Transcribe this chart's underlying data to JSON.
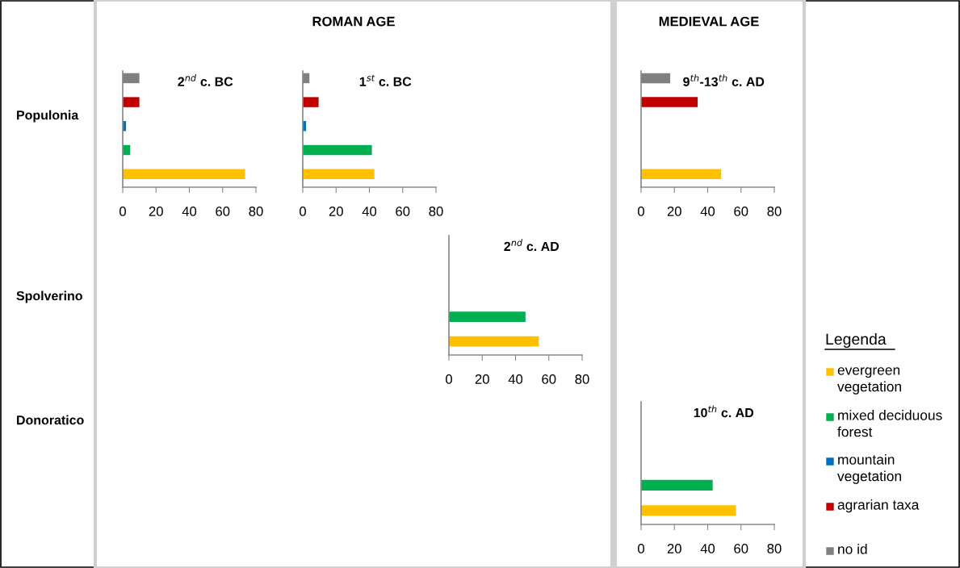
{
  "chart_data": [
    {
      "type": "other",
      "annotations": [
        "ROMAN AGE",
        "MEDIEVAL AGE",
        "Populonia",
        "Spolverino",
        "Donoratico"
      ]
    },
    {
      "type": "bar",
      "orientation": "horizontal",
      "title": "2$^{nd}$ c. BC",
      "categories": [
        null,
        null,
        null,
        null,
        null
      ],
      "xlim": [
        0,
        80
      ],
      "xticks": [
        0,
        20,
        40,
        60,
        80
      ],
      "tick_labels": "x",
      "series": [
        {
          "color": "#ffc000",
          "values": [
            null,
            null,
            null,
            null,
            73.5
          ]
        },
        {
          "color": "#00b050",
          "values": [
            null,
            null,
            null,
            4.5,
            null
          ]
        },
        {
          "color": "#0070c0",
          "values": [
            null,
            null,
            2,
            null,
            null
          ]
        },
        {
          "color": "#c00000",
          "values": [
            null,
            10,
            null,
            null,
            null
          ]
        },
        {
          "color": "#808080",
          "values": [
            10,
            null,
            null,
            null,
            null
          ]
        }
      ]
    },
    {
      "type": "bar",
      "orientation": "horizontal",
      "title": "1$^{st}$ c. BC",
      "categories": [
        null,
        null,
        null,
        null,
        null
      ],
      "xlim": [
        0,
        80
      ],
      "xticks": [
        0,
        20,
        40,
        60,
        80
      ],
      "tick_labels": "x",
      "series": [
        {
          "color": "#ffc000",
          "values": [
            null,
            null,
            null,
            null,
            43
          ]
        },
        {
          "color": "#00b050",
          "values": [
            null,
            null,
            null,
            41.5,
            null
          ]
        },
        {
          "color": "#0070c0",
          "values": [
            null,
            null,
            2,
            null,
            null
          ]
        },
        {
          "color": "#c00000",
          "values": [
            null,
            9.5,
            null,
            null,
            null
          ]
        },
        {
          "color": "#808080",
          "values": [
            4,
            null,
            null,
            null,
            null
          ]
        }
      ]
    },
    {
      "type": "bar",
      "orientation": "horizontal",
      "title": "2$^{nd}$ c. AD",
      "categories": [
        null,
        null,
        null,
        null,
        null
      ],
      "xlim": [
        0,
        80
      ],
      "xticks": [
        0,
        20,
        40,
        60,
        80
      ],
      "tick_labels": "x",
      "series": [
        {
          "color": "#ffc000",
          "values": [
            null,
            null,
            null,
            null,
            54
          ]
        },
        {
          "color": "#00b050",
          "values": [
            null,
            null,
            null,
            46,
            null
          ]
        }
      ]
    },
    {
      "type": "bar",
      "orientation": "horizontal",
      "title": "9$^{th}$-13$^{th}$ c. AD",
      "categories": [
        null,
        null,
        null,
        null,
        null
      ],
      "xlim": [
        0,
        80
      ],
      "xticks": [
        0,
        20,
        40,
        60,
        80
      ],
      "tick_labels": "x",
      "series": [
        {
          "color": "#ffc000",
          "values": [
            null,
            null,
            null,
            null,
            48
          ]
        },
        {
          "color": "#c00000",
          "values": [
            null,
            34,
            null,
            null,
            null
          ]
        },
        {
          "color": "#808080",
          "values": [
            17.5,
            null,
            null,
            null,
            null
          ]
        }
      ]
    },
    {
      "type": "bar",
      "orientation": "horizontal",
      "title": "10$^{th}$ c. AD",
      "categories": [
        null,
        null,
        null,
        null,
        null
      ],
      "xlim": [
        0,
        80
      ],
      "xticks": [
        0,
        20,
        40,
        60,
        80
      ],
      "tick_labels": "x",
      "legend": "right",
      "legend_title": "Legenda",
      "series": [
        {
          "name": "evergreen vegetation",
          "color": "#ffc000",
          "values": [
            null,
            null,
            null,
            null,
            57
          ]
        },
        {
          "name": "mixed deciduous forest",
          "color": "#00b050",
          "values": [
            null,
            null,
            null,
            43,
            null
          ]
        },
        {
          "name": "mountain vegetation",
          "color": "#0070c0",
          "values": [
            null,
            null,
            null,
            null,
            null
          ]
        },
        {
          "name": "agrarian taxa",
          "color": "#c00000",
          "values": [
            null,
            null,
            null,
            null,
            null
          ]
        },
        {
          "name": "no id",
          "color": "#808080",
          "values": [
            null,
            null,
            null,
            null,
            null
          ]
        }
      ]
    }
  ]
}
